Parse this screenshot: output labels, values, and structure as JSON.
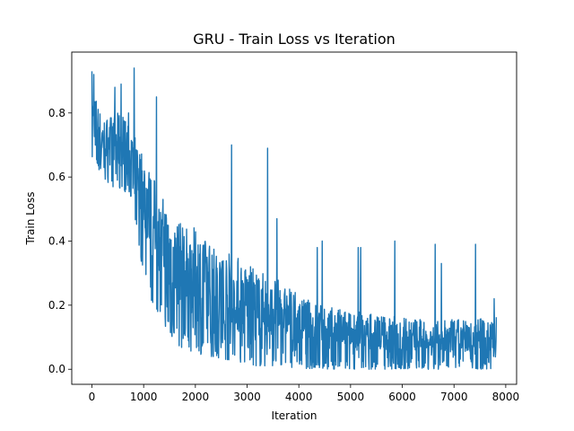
{
  "chart_data": {
    "type": "line",
    "title": "GRU - Train Loss vs Iteration",
    "xlabel": "Iteration",
    "ylabel": "Train Loss",
    "xlim": [
      -390,
      8210
    ],
    "ylim": [
      -0.047,
      0.99
    ],
    "xticks": [
      0,
      1000,
      2000,
      3000,
      4000,
      5000,
      6000,
      7000,
      8000
    ],
    "yticks": [
      0.0,
      0.2,
      0.4,
      0.6,
      0.8
    ],
    "xtick_labels": [
      "0",
      "1000",
      "2000",
      "3000",
      "4000",
      "5000",
      "6000",
      "7000",
      "8000"
    ],
    "ytick_labels": [
      "0.0",
      "0.2",
      "0.4",
      "0.6",
      "0.8"
    ],
    "grid": false,
    "color": "#1f77b4",
    "series": [
      {
        "name": "",
        "x_range": [
          0,
          7820
        ],
        "envelope": {
          "x": [
            0,
            100,
            200,
            400,
            600,
            700,
            800,
            900,
            1000,
            1100,
            1200,
            1300,
            1500,
            1700,
            2000,
            2300,
            2600,
            2900,
            3200,
            3500,
            3800,
            4000,
            4300,
            4700,
            5200,
            5700,
            6200,
            6700,
            7200,
            7600,
            7820
          ],
          "high": [
            0.9,
            0.84,
            0.78,
            0.8,
            0.8,
            0.76,
            0.73,
            0.72,
            0.68,
            0.64,
            0.6,
            0.56,
            0.5,
            0.46,
            0.44,
            0.4,
            0.37,
            0.35,
            0.31,
            0.29,
            0.26,
            0.23,
            0.21,
            0.19,
            0.18,
            0.17,
            0.16,
            0.15,
            0.16,
            0.16,
            0.18
          ],
          "low": [
            0.65,
            0.62,
            0.6,
            0.57,
            0.55,
            0.56,
            0.52,
            0.38,
            0.3,
            0.23,
            0.2,
            0.17,
            0.11,
            0.07,
            0.05,
            0.04,
            0.03,
            0.02,
            0.01,
            0.01,
            0.005,
            0.003,
            0.002,
            0.0,
            0.0,
            0.0,
            0.0,
            0.0,
            0.0,
            0.0,
            0.0
          ]
        },
        "spikes": [
          {
            "x": 0,
            "y": 0.93
          },
          {
            "x": 30,
            "y": 0.92
          },
          {
            "x": 440,
            "y": 0.88
          },
          {
            "x": 560,
            "y": 0.89
          },
          {
            "x": 710,
            "y": 0.8
          },
          {
            "x": 820,
            "y": 0.94
          },
          {
            "x": 1250,
            "y": 0.85
          },
          {
            "x": 2700,
            "y": 0.7
          },
          {
            "x": 3400,
            "y": 0.69
          },
          {
            "x": 3580,
            "y": 0.47
          },
          {
            "x": 4350,
            "y": 0.38
          },
          {
            "x": 4450,
            "y": 0.4
          },
          {
            "x": 5150,
            "y": 0.38
          },
          {
            "x": 5200,
            "y": 0.38
          },
          {
            "x": 5850,
            "y": 0.4
          },
          {
            "x": 6630,
            "y": 0.39
          },
          {
            "x": 6750,
            "y": 0.33
          },
          {
            "x": 7410,
            "y": 0.39
          },
          {
            "x": 7780,
            "y": 0.22
          }
        ]
      }
    ]
  }
}
